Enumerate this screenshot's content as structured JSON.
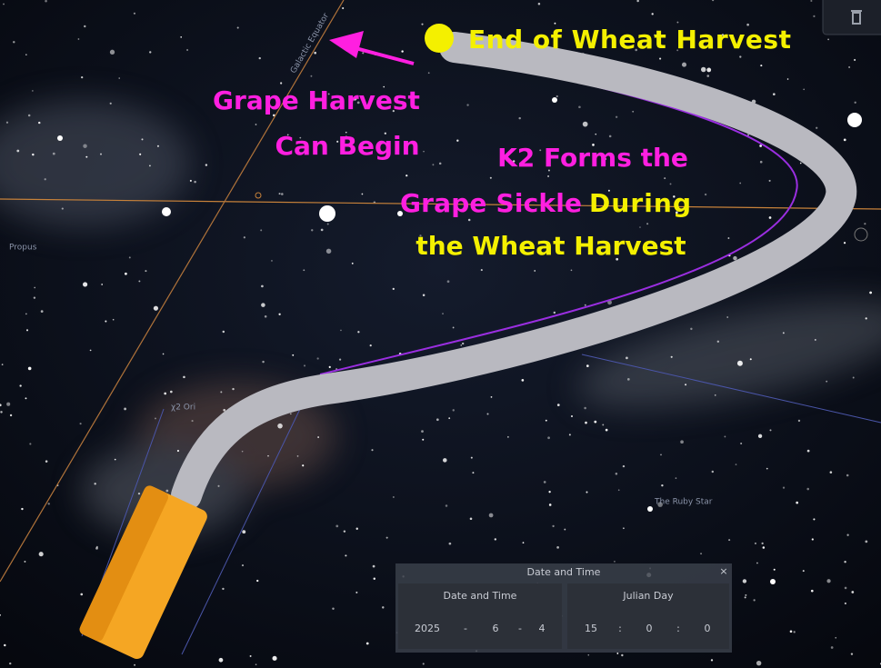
{
  "annotations": {
    "end_wheat": "End of Wheat Harvest",
    "grape_lines": [
      "Grape Harvest",
      "Can Begin"
    ],
    "k2_line1": "K2 Forms the",
    "k2_magenta": "Grape Sickle",
    "k2_yellow": "During",
    "k2_line3": "the Wheat Harvest"
  },
  "sky_labels": [
    "Galactic Equator",
    "Propus",
    "χ2 Ori",
    "The Ruby Star"
  ],
  "panel": {
    "title": "Date and Time",
    "date_header": "Date and Time",
    "jd_header": "Julian Day",
    "date": {
      "year": "2025",
      "sep": "-",
      "month": "6",
      "day": "4"
    },
    "time": {
      "hour": "15",
      "sep": ":",
      "minute": "0",
      "second": "0"
    }
  }
}
